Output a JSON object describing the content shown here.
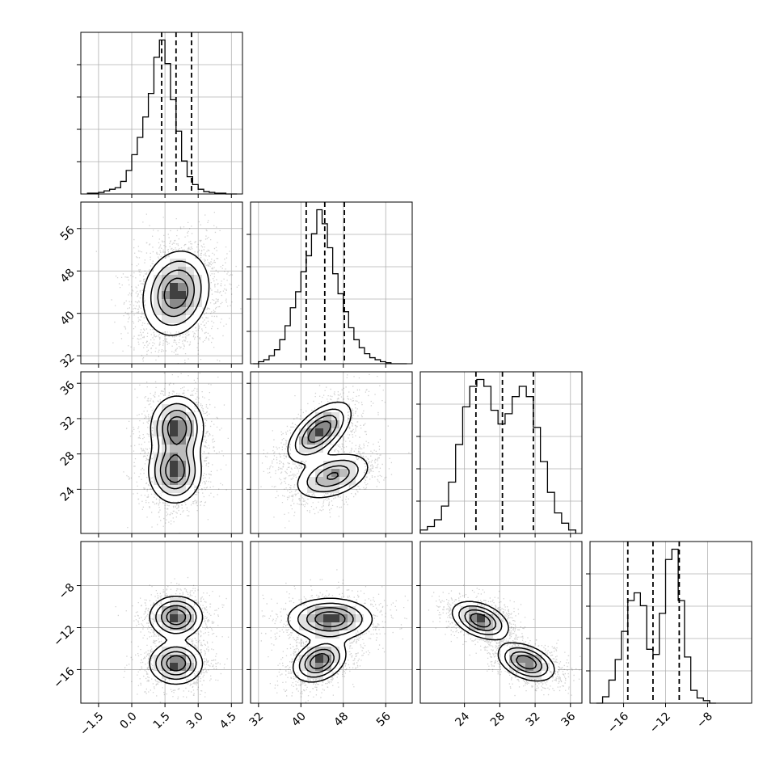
{
  "chart_data": {
    "type": "corner",
    "grid": true,
    "parameters": [
      {
        "ticks": [
          -1.5,
          0.0,
          1.5,
          3.0,
          4.5
        ],
        "tick_labels": [
          "−1.5",
          "0.0",
          "1.5",
          "3.0",
          "4.5"
        ],
        "range": [
          -2.3,
          5.0
        ],
        "quantiles": [
          1.35,
          2.0,
          2.7
        ],
        "hist": {
          "edges": [
            -2.0,
            -1.75,
            -1.5,
            -1.25,
            -1.0,
            -0.75,
            -0.5,
            -0.25,
            0.0,
            0.25,
            0.5,
            0.75,
            1.0,
            1.25,
            1.5,
            1.75,
            2.0,
            2.25,
            2.5,
            2.75,
            3.0,
            3.25,
            3.5,
            3.75,
            4.0,
            4.25,
            4.5,
            4.75
          ],
          "counts": [
            1,
            1,
            2,
            4,
            6,
            8,
            16,
            30,
            50,
            72,
            98,
            128,
            174,
            196,
            166,
            120,
            80,
            42,
            22,
            12,
            6,
            3,
            2,
            1,
            1,
            0,
            0
          ]
        }
      },
      {
        "ticks": [
          32,
          40,
          48,
          56
        ],
        "tick_labels": [
          "32",
          "40",
          "48",
          "56"
        ],
        "range": [
          30.5,
          61.0
        ],
        "quantiles": [
          41.0,
          44.5,
          48.2
        ],
        "hist": {
          "edges": [
            31,
            32,
            33,
            34,
            35,
            36,
            37,
            38,
            39,
            40,
            41,
            42,
            43,
            44,
            45,
            46,
            47,
            48,
            49,
            50,
            51,
            52,
            53,
            54,
            55,
            56,
            57,
            58,
            59,
            60
          ],
          "counts": [
            0,
            2,
            4,
            8,
            14,
            24,
            38,
            56,
            72,
            92,
            108,
            130,
            154,
            140,
            116,
            90,
            70,
            52,
            36,
            24,
            16,
            10,
            6,
            4,
            2,
            1,
            0,
            0,
            0
          ]
        }
      },
      {
        "ticks": [
          24,
          28,
          32,
          36
        ],
        "tick_labels": [
          "24",
          "28",
          "32",
          "36"
        ],
        "range": [
          19.0,
          37.3
        ],
        "quantiles": [
          25.3,
          28.3,
          31.8
        ],
        "hist": {
          "edges": [
            19.0,
            19.8,
            20.6,
            21.4,
            22.2,
            23.0,
            23.8,
            24.6,
            25.4,
            26.2,
            27.0,
            27.8,
            28.6,
            29.4,
            30.2,
            31.0,
            31.8,
            32.6,
            33.4,
            34.2,
            35.0,
            35.8,
            36.6
          ],
          "counts": [
            2,
            4,
            8,
            16,
            30,
            52,
            74,
            86,
            90,
            86,
            72,
            64,
            70,
            80,
            86,
            80,
            62,
            42,
            24,
            12,
            6,
            2
          ]
        }
      },
      {
        "ticks": [
          -16,
          -12,
          -8
        ],
        "tick_labels": [
          "−16",
          "−12",
          "−8"
        ],
        "range": [
          -19.2,
          -3.8
        ],
        "quantiles": [
          -15.6,
          -13.2,
          -10.7
        ],
        "hist": {
          "edges": [
            -18.6,
            -18.0,
            -17.4,
            -16.8,
            -16.2,
            -15.6,
            -15.0,
            -14.4,
            -13.8,
            -13.2,
            -12.6,
            -12.0,
            -11.4,
            -10.8,
            -10.2,
            -9.6,
            -9.0,
            -8.4,
            -7.8,
            -7.2
          ],
          "counts": [
            0,
            5,
            18,
            34,
            56,
            80,
            86,
            76,
            42,
            38,
            70,
            112,
            120,
            80,
            36,
            10,
            4,
            2,
            0
          ]
        }
      }
    ],
    "pair_clusters": {
      "1_0": [
        {
          "c": [
            2.0,
            43.8
          ],
          "s": [
            0.75,
            4.0
          ],
          "rho": 0.15,
          "w": 1
        }
      ],
      "2_0": [
        {
          "c": [
            1.95,
            26.0
          ],
          "s": [
            0.6,
            1.8
          ],
          "rho": 0.0,
          "w": 0.5
        },
        {
          "c": [
            2.05,
            31.0
          ],
          "s": [
            0.6,
            1.8
          ],
          "rho": 0.0,
          "w": 0.5
        }
      ],
      "2_1": [
        {
          "c": [
            43.5,
            30.5
          ],
          "s": [
            3.0,
            1.7
          ],
          "rho": 0.6,
          "w": 0.55
        },
        {
          "c": [
            46.0,
            25.5
          ],
          "s": [
            3.5,
            1.3
          ],
          "rho": 0.4,
          "w": 0.45
        }
      ],
      "3_0": [
        {
          "c": [
            2.0,
            -11.0
          ],
          "s": [
            0.6,
            1.0
          ],
          "rho": 0.0,
          "w": 0.5
        },
        {
          "c": [
            2.0,
            -15.4
          ],
          "s": [
            0.6,
            1.0
          ],
          "rho": 0.0,
          "w": 0.5
        }
      ],
      "3_1": [
        {
          "c": [
            45.5,
            -11.2
          ],
          "s": [
            4.0,
            1.0
          ],
          "rho": 0.0,
          "w": 0.5
        },
        {
          "c": [
            43.5,
            -15.2
          ],
          "s": [
            2.5,
            1.0
          ],
          "rho": 0.3,
          "w": 0.5
        }
      ],
      "3_2": [
        {
          "c": [
            25.8,
            -11.3
          ],
          "s": [
            1.6,
            0.9
          ],
          "rho": -0.4,
          "w": 0.5
        },
        {
          "c": [
            31.0,
            -15.3
          ],
          "s": [
            1.6,
            0.9
          ],
          "rho": -0.4,
          "w": 0.5
        }
      ]
    }
  }
}
